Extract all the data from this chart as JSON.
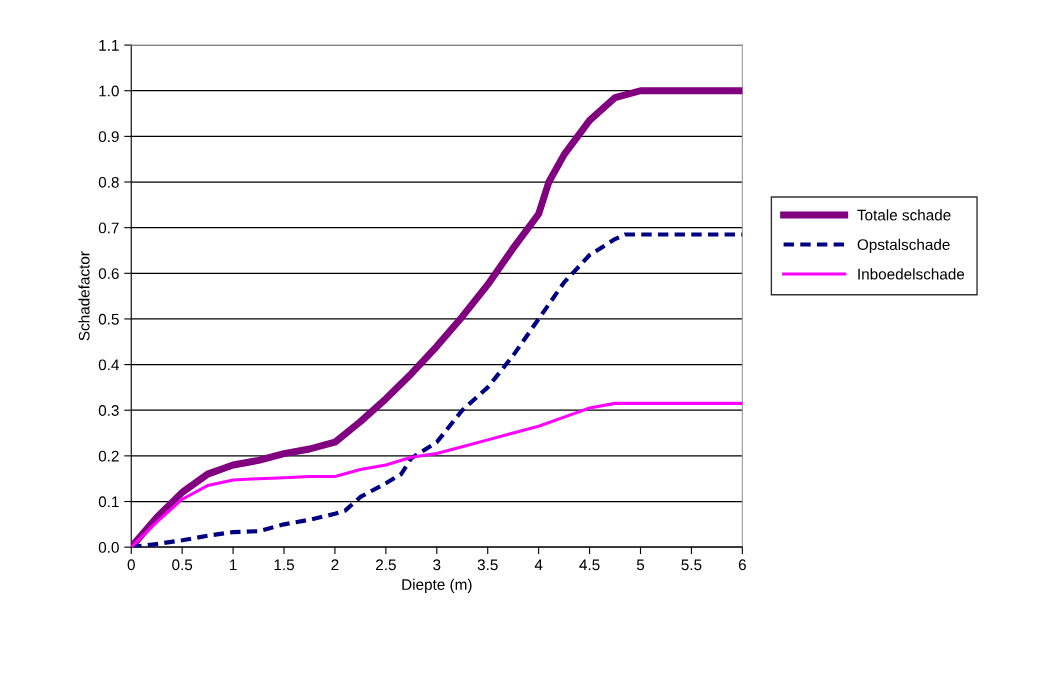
{
  "chart_data": {
    "type": "line",
    "xlabel": "Diepte (m)",
    "ylabel": "Schadefactor",
    "xlim": [
      0,
      6
    ],
    "xticks": [
      0,
      0.5,
      1,
      1.5,
      2,
      2.5,
      3,
      3.5,
      4,
      4.5,
      5,
      5.5,
      6
    ],
    "ylim": [
      0,
      1.1
    ],
    "yticks": [
      {
        "value": 0,
        "label": "0.0"
      },
      0.1,
      0.2,
      0.3,
      0.4,
      0.5,
      0.6,
      0.7,
      0.8,
      0.9,
      {
        "value": 1,
        "label": "1.0"
      },
      1.1
    ],
    "grid": "y",
    "legend": "right",
    "marker": "none",
    "series": [
      {
        "name": "Totale schade",
        "color": "#800080",
        "line_style": "solid",
        "x": [
          0,
          0.25,
          0.5,
          0.75,
          1,
          1.25,
          1.5,
          1.75,
          2,
          2.25,
          2.5,
          2.75,
          3,
          3.25,
          3.5,
          3.75,
          4,
          4.1,
          4.25,
          4.5,
          4.75,
          5,
          6
        ],
        "values": [
          0,
          0.065,
          0.12,
          0.16,
          0.18,
          0.19,
          0.205,
          0.215,
          0.23,
          0.275,
          0.325,
          0.38,
          0.44,
          0.505,
          0.575,
          0.655,
          0.73,
          0.8,
          0.86,
          0.935,
          0.985,
          1.0,
          1.0
        ]
      },
      {
        "name": "Opstalschade",
        "color": "#000080",
        "line_style": "dashed",
        "x": [
          0,
          0.25,
          0.5,
          0.75,
          1,
          1.25,
          1.5,
          1.75,
          2,
          2.1,
          2.25,
          2.5,
          2.65,
          2.75,
          3,
          3.25,
          3.5,
          3.75,
          4,
          4.25,
          4.5,
          4.75,
          4.85,
          6
        ],
        "values": [
          0,
          0.007,
          0.015,
          0.025,
          0.033,
          0.035,
          0.05,
          0.06,
          0.073,
          0.08,
          0.11,
          0.14,
          0.16,
          0.195,
          0.23,
          0.3,
          0.35,
          0.42,
          0.5,
          0.58,
          0.64,
          0.675,
          0.685,
          0.685
        ]
      },
      {
        "name": "Inboedelschade",
        "color": "#ff00ff",
        "line_style": "solid",
        "x": [
          0,
          0.25,
          0.5,
          0.75,
          1,
          1.25,
          1.5,
          1.75,
          2,
          2.25,
          2.5,
          2.75,
          3,
          3.25,
          3.5,
          3.75,
          4,
          4.25,
          4.5,
          4.75,
          5,
          6
        ],
        "values": [
          0,
          0.055,
          0.105,
          0.135,
          0.147,
          0.15,
          0.152,
          0.155,
          0.155,
          0.17,
          0.18,
          0.197,
          0.205,
          0.22,
          0.235,
          0.25,
          0.265,
          0.285,
          0.305,
          0.315,
          0.315,
          0.315
        ]
      }
    ]
  }
}
